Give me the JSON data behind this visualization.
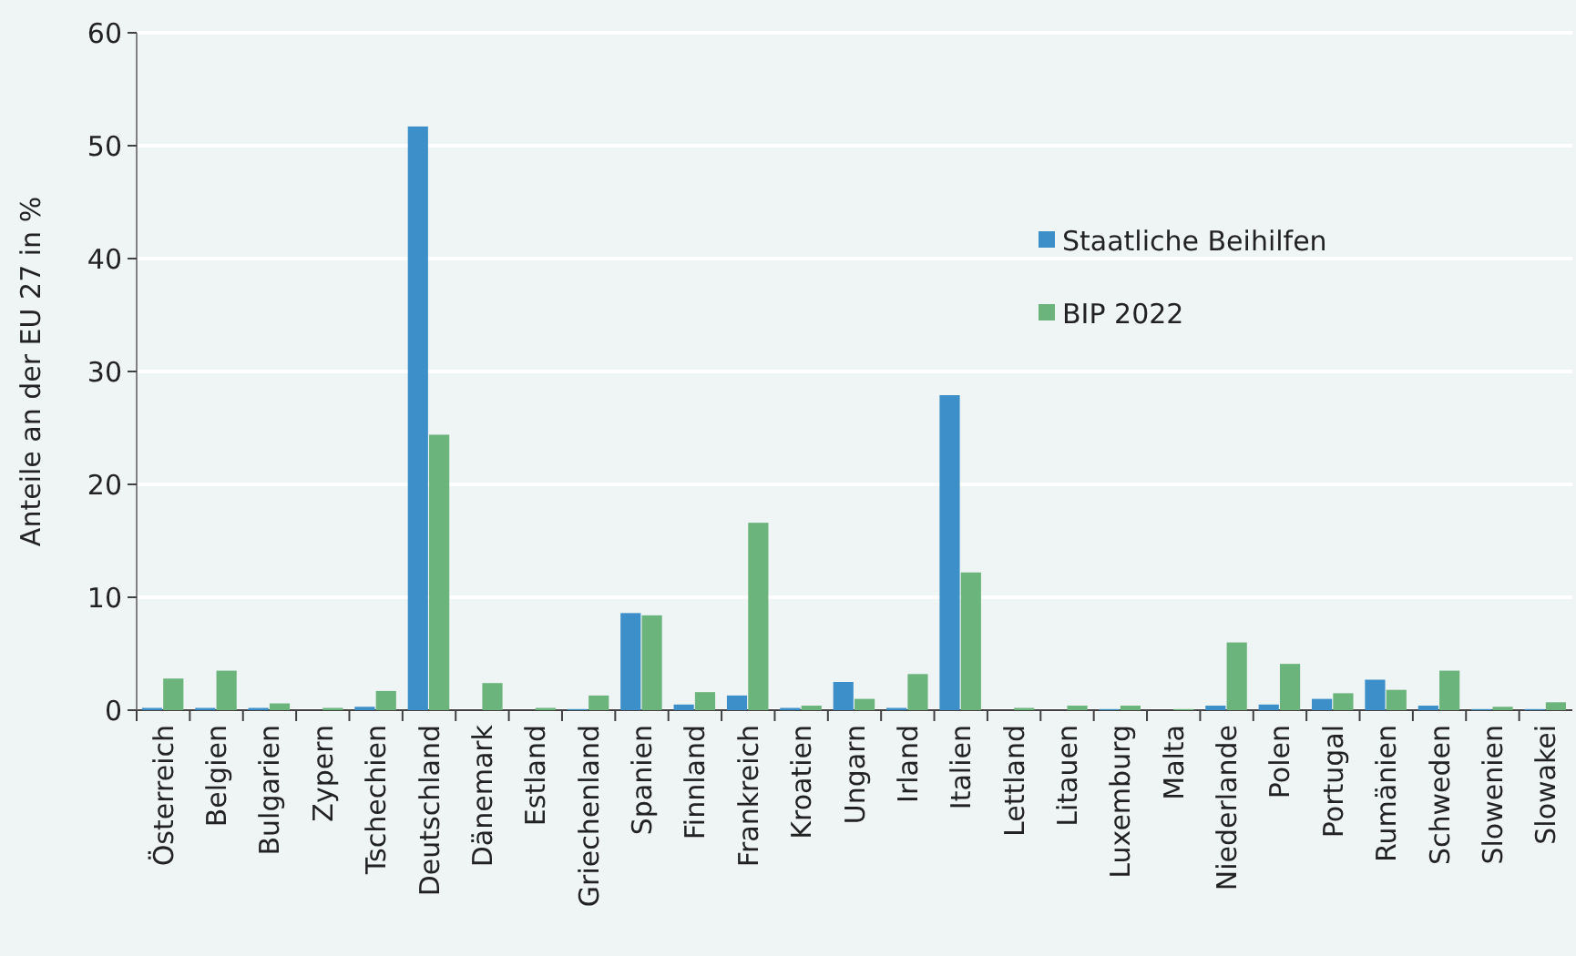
{
  "chart_data": {
    "type": "bar",
    "ylabel": "Anteile an der EU 27 in %",
    "categories": [
      "Österreich",
      "Belgien",
      "Bulgarien",
      "Zypern",
      "Tschechien",
      "Deutschland",
      "Dänemark",
      "Estland",
      "Griechenland",
      "Spanien",
      "Finnland",
      "Frankreich",
      "Kroatien",
      "Ungarn",
      "Irland",
      "Italien",
      "Lettland",
      "Litauen",
      "Luxemburg",
      "Malta",
      "Niederlande",
      "Polen",
      "Portugal",
      "Rumänien",
      "Schweden",
      "Slowenien",
      "Slowakei"
    ],
    "series": [
      {
        "name": "Staatliche Beihilfen",
        "color": "#3c8fc8",
        "values": [
          0.2,
          0.2,
          0.2,
          0,
          0.3,
          51.7,
          0,
          0,
          0.1,
          8.6,
          0.5,
          1.3,
          0.2,
          2.5,
          0.2,
          27.9,
          0,
          0,
          0.1,
          0,
          0.4,
          0.5,
          1.0,
          2.7,
          0.4,
          0.1,
          0.1
        ]
      },
      {
        "name": "BIP 2022",
        "color": "#6bb47b",
        "values": [
          2.8,
          3.5,
          0.6,
          0.2,
          1.7,
          24.4,
          2.4,
          0.2,
          1.3,
          8.4,
          1.6,
          16.6,
          0.4,
          1.0,
          3.2,
          12.2,
          0.2,
          0.4,
          0.4,
          0.1,
          6.0,
          4.1,
          1.5,
          1.8,
          3.5,
          0.3,
          0.7
        ]
      }
    ],
    "ylim": [
      0,
      60
    ],
    "yticks": [
      0,
      10,
      20,
      30,
      40,
      50,
      60
    ],
    "grid": "y",
    "legend": "right"
  }
}
